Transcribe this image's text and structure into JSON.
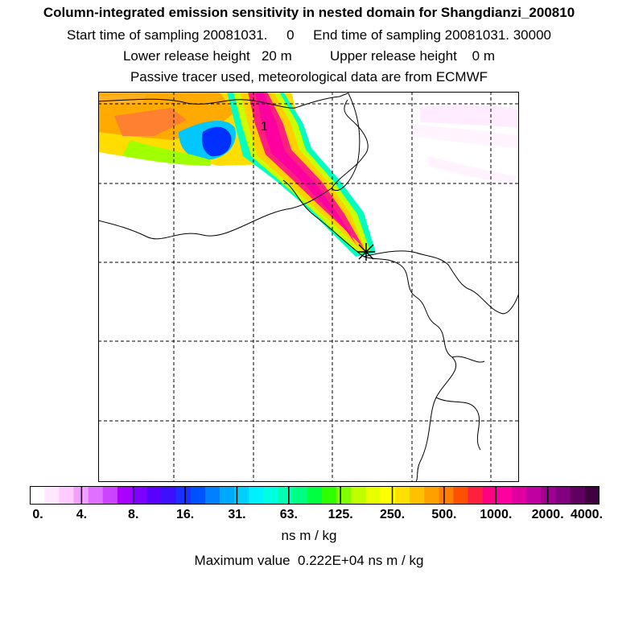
{
  "header": {
    "title": "Column-integrated emission sensitivity in nested domain for Shangdianzi_200810",
    "sampling": "Start time of sampling 20081031.     0     End time of sampling 20081031. 30000",
    "release": "Lower release height   20 m          Upper release height    0 m",
    "tracer": "Passive tracer used, meteorological data are from ECMWF"
  },
  "map": {
    "contour_label": "1",
    "receptor_marker": "Shangdianzi"
  },
  "colorbar": {
    "tick_labels": [
      "0.",
      "4.",
      "8.",
      "16.",
      "31.",
      "63.",
      "125.",
      "250.",
      "500.",
      "1000.",
      "2000.",
      "4000."
    ],
    "colors": [
      "#ffffff",
      "#ffe8ff",
      "#ffccff",
      "#f0a0ff",
      "#e070ff",
      "#cc44ff",
      "#aa00ff",
      "#8000ff",
      "#5a00ff",
      "#3a10ff",
      "#1a30ff",
      "#0050ff",
      "#0080ff",
      "#00a8ff",
      "#00d0ff",
      "#00f0ff",
      "#00ffe0",
      "#00ffb0",
      "#00ff80",
      "#00ff40",
      "#30ff00",
      "#80ff00",
      "#c0ff00",
      "#e8ff00",
      "#ffff00",
      "#ffe000",
      "#ffc000",
      "#ffa000",
      "#ff8000",
      "#ff5000",
      "#ff2040",
      "#ff0080",
      "#ff00a0",
      "#e000a0",
      "#c000a0",
      "#a00090",
      "#800080",
      "#600060",
      "#400040"
    ],
    "units": "ns m / kg",
    "maximum": "Maximum value  0.222E+04 ns m / kg"
  }
}
